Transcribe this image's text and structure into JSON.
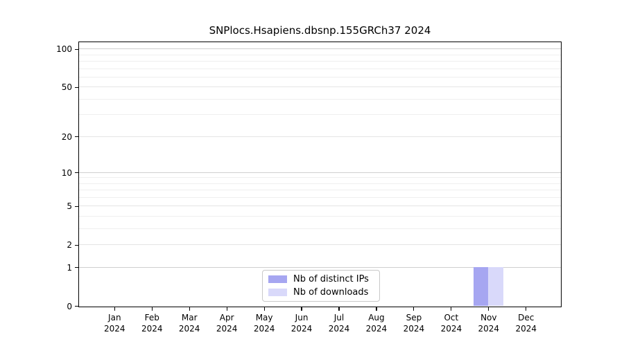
{
  "chart_data": {
    "type": "bar",
    "title": "SNPlocs.Hsapiens.dbsnp.155GRCh37 2024",
    "x_year": "2024",
    "categories": [
      "Jan",
      "Feb",
      "Mar",
      "Apr",
      "May",
      "Jun",
      "Jul",
      "Aug",
      "Sep",
      "Oct",
      "Nov",
      "Dec"
    ],
    "series": [
      {
        "name": "Nb of distinct IPs",
        "color": "#a6a6f1",
        "values": [
          0,
          0,
          0,
          0,
          0,
          0,
          0,
          0,
          0,
          0,
          1,
          0
        ]
      },
      {
        "name": "Nb of downloads",
        "color": "#d9d9fa",
        "values": [
          0,
          0,
          0,
          0,
          0,
          0,
          0,
          0,
          0,
          0,
          1,
          0
        ]
      }
    ],
    "y_scale": "log1p",
    "ylim": [
      0,
      113
    ],
    "y_ticks": [
      0,
      1,
      2,
      5,
      10,
      20,
      50,
      100
    ],
    "y_major_gridlines": [
      1,
      10,
      100
    ],
    "y_mid_gridlines": [
      2,
      5,
      20,
      50
    ],
    "y_minor_gridlines": [
      3,
      4,
      6,
      7,
      8,
      9,
      30,
      40,
      60,
      70,
      80,
      90
    ],
    "grid": true,
    "legend_position": "lower center inside plot"
  },
  "colors": {
    "background": "#ffffff",
    "axis_frame": "#000000",
    "grid_major": "#cfcfcf",
    "grid_minor": "#efefef",
    "legend_border": "#c8c8c8",
    "bar_distinct_ips": "#a6a6f1",
    "bar_downloads": "#d9d9fa"
  }
}
